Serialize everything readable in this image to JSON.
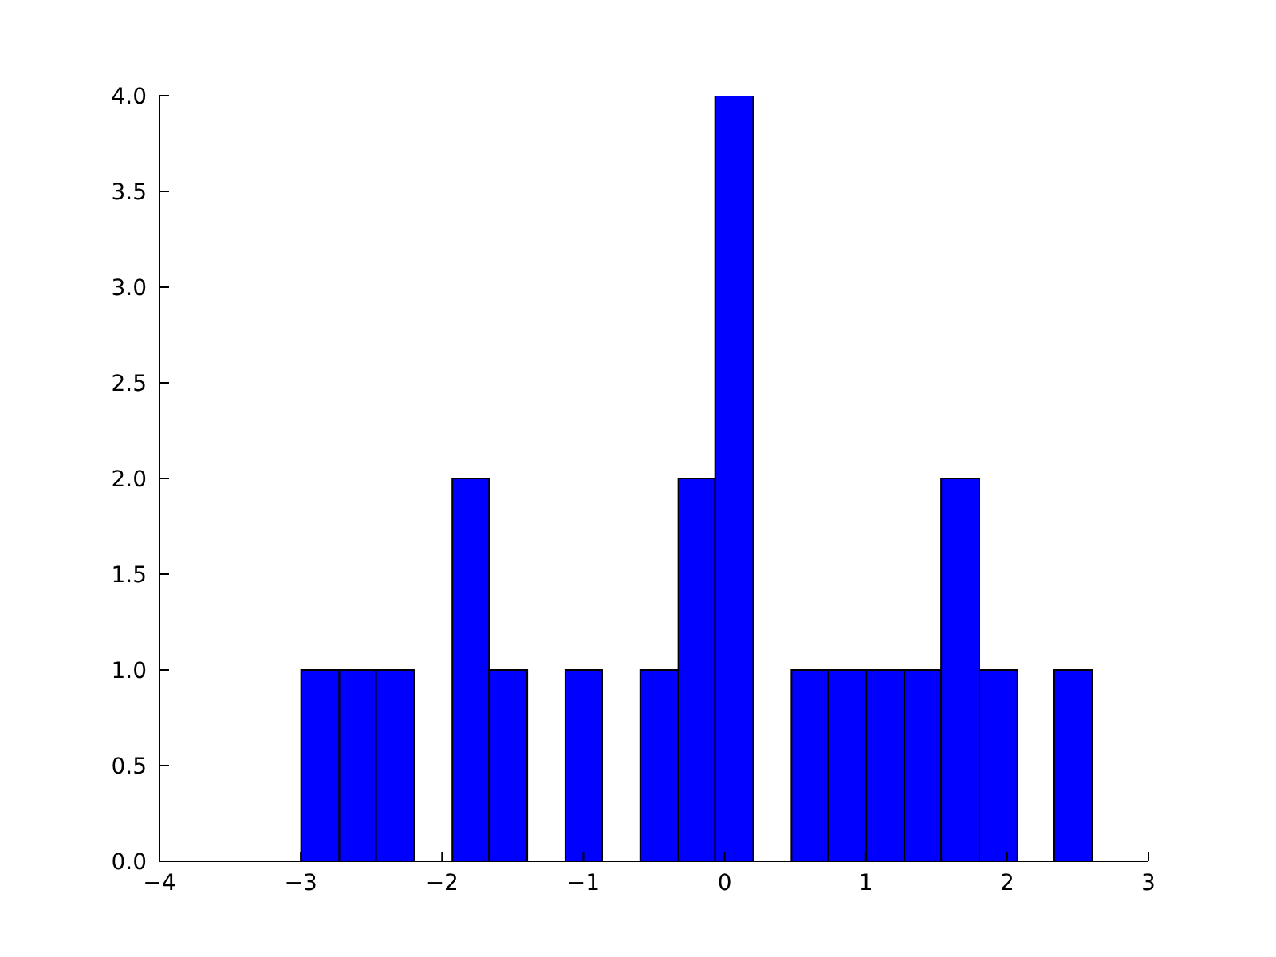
{
  "chart_data": {
    "type": "histogram",
    "color": "#0000ff",
    "bins": [
      -3.0,
      -2.73,
      -2.47,
      -2.2,
      -1.93,
      -1.67,
      -1.4,
      -1.13,
      -0.87,
      -0.6,
      -0.33,
      -0.07,
      0.2,
      0.47,
      0.73,
      1.0,
      1.27,
      1.53,
      1.8,
      2.07,
      2.33,
      2.6
    ],
    "values": [
      1,
      1,
      1,
      0,
      2,
      1,
      0,
      1,
      0,
      1,
      2,
      4,
      0,
      1,
      1,
      1,
      1,
      2,
      1,
      0,
      1
    ],
    "xlim": [
      -4,
      3
    ],
    "xticks": [
      -4,
      -3,
      -2,
      -1,
      0,
      1,
      2,
      3
    ],
    "ylim": [
      0,
      4
    ],
    "yticks": [
      {
        "value": 0,
        "label": "0.0"
      },
      {
        "value": 0.5,
        "label": "0.5"
      },
      {
        "value": 1,
        "label": "1.0"
      },
      {
        "value": 1.5,
        "label": "1.5"
      },
      {
        "value": 2,
        "label": "2.0"
      },
      {
        "value": 2.5,
        "label": "2.5"
      },
      {
        "value": 3,
        "label": "3.0"
      },
      {
        "value": 3.5,
        "label": "3.5"
      },
      {
        "value": 4,
        "label": "4.0"
      }
    ]
  }
}
